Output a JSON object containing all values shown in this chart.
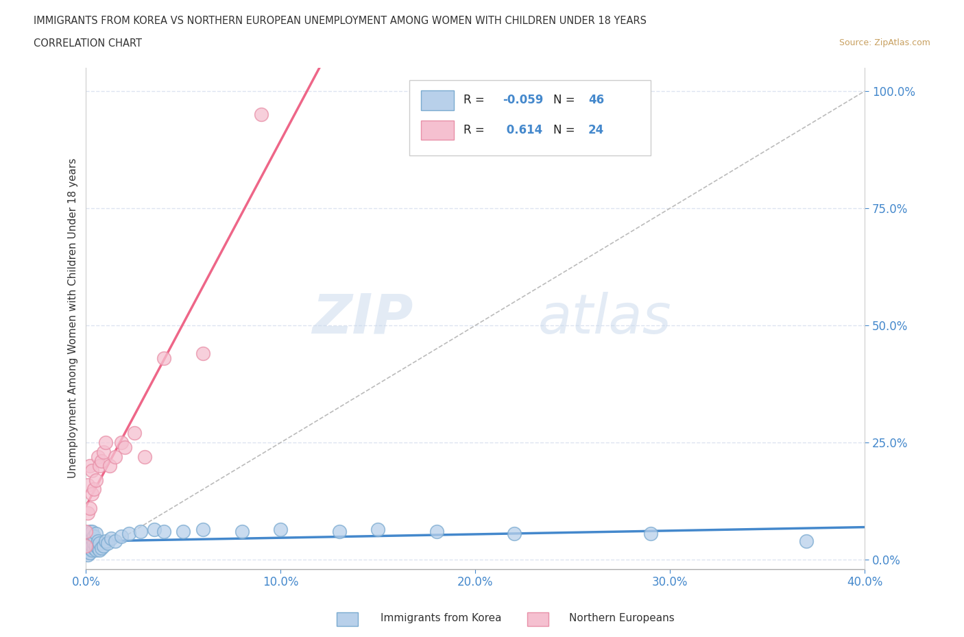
{
  "title": "IMMIGRANTS FROM KOREA VS NORTHERN EUROPEAN UNEMPLOYMENT AMONG WOMEN WITH CHILDREN UNDER 18 YEARS",
  "subtitle": "CORRELATION CHART",
  "source": "Source: ZipAtlas.com",
  "ylabel": "Unemployment Among Women with Children Under 18 years",
  "xlim": [
    0.0,
    0.4
  ],
  "ylim": [
    -0.02,
    1.05
  ],
  "xticks": [
    0.0,
    0.1,
    0.2,
    0.3,
    0.4
  ],
  "xticklabels": [
    "0.0%",
    "10.0%",
    "20.0%",
    "30.0%",
    "40.0%"
  ],
  "yticks": [
    0.0,
    0.25,
    0.5,
    0.75,
    1.0
  ],
  "yticklabels": [
    "0.0%",
    "25.0%",
    "50.0%",
    "75.0%",
    "100.0%"
  ],
  "korea_color": "#b8d0ea",
  "korea_edge": "#7aaad0",
  "northern_color": "#f5c0d0",
  "northern_edge": "#e890a8",
  "korea_R": -0.059,
  "korea_N": 46,
  "northern_R": 0.614,
  "northern_N": 24,
  "korea_line_color": "#4488cc",
  "northern_line_color": "#ee6688",
  "diagonal_color": "#bbbbbb",
  "grid_color": "#dde4f0",
  "background_color": "#ffffff",
  "watermark_zip": "ZIP",
  "watermark_atlas": "atlas",
  "legend_korea": "Immigrants from Korea",
  "legend_northern": "Northern Europeans",
  "title_color": "#333333",
  "source_color": "#c8a060",
  "axis_color": "#4488cc",
  "korea_x": [
    0.0,
    0.0,
    0.001,
    0.001,
    0.001,
    0.001,
    0.002,
    0.002,
    0.002,
    0.002,
    0.002,
    0.003,
    0.003,
    0.003,
    0.003,
    0.004,
    0.004,
    0.004,
    0.005,
    0.005,
    0.005,
    0.006,
    0.006,
    0.007,
    0.007,
    0.008,
    0.009,
    0.01,
    0.011,
    0.013,
    0.015,
    0.018,
    0.022,
    0.028,
    0.035,
    0.04,
    0.05,
    0.06,
    0.08,
    0.1,
    0.13,
    0.15,
    0.18,
    0.22,
    0.29,
    0.37
  ],
  "korea_y": [
    0.02,
    0.03,
    0.01,
    0.025,
    0.035,
    0.05,
    0.015,
    0.025,
    0.04,
    0.055,
    0.06,
    0.02,
    0.03,
    0.045,
    0.06,
    0.025,
    0.035,
    0.05,
    0.02,
    0.03,
    0.055,
    0.025,
    0.04,
    0.02,
    0.035,
    0.025,
    0.03,
    0.04,
    0.035,
    0.045,
    0.04,
    0.05,
    0.055,
    0.06,
    0.065,
    0.06,
    0.06,
    0.065,
    0.06,
    0.065,
    0.06,
    0.065,
    0.06,
    0.055,
    0.055,
    0.04
  ],
  "northern_x": [
    0.0,
    0.0,
    0.001,
    0.001,
    0.002,
    0.002,
    0.003,
    0.003,
    0.004,
    0.005,
    0.006,
    0.007,
    0.008,
    0.009,
    0.01,
    0.012,
    0.015,
    0.018,
    0.02,
    0.025,
    0.03,
    0.04,
    0.06,
    0.09
  ],
  "northern_y": [
    0.03,
    0.06,
    0.1,
    0.16,
    0.11,
    0.2,
    0.14,
    0.19,
    0.15,
    0.17,
    0.22,
    0.2,
    0.21,
    0.23,
    0.25,
    0.2,
    0.22,
    0.25,
    0.24,
    0.27,
    0.22,
    0.43,
    0.44,
    0.95
  ]
}
